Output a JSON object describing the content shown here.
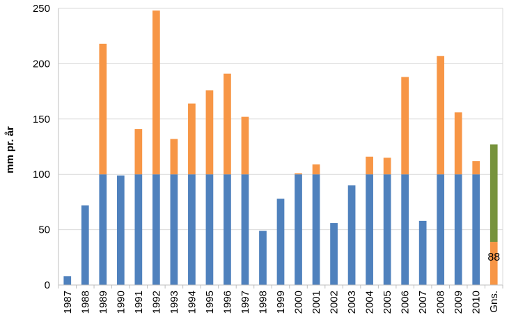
{
  "chart_data": {
    "type": "bar",
    "stacked": true,
    "title": "",
    "xlabel": "",
    "ylabel": "mm pr. år",
    "ylim": [
      0,
      250
    ],
    "yticks": [
      0,
      50,
      100,
      150,
      200,
      250
    ],
    "grid": true,
    "legend": "none",
    "categories": [
      "1987",
      "1988",
      "1989",
      "1990",
      "1991",
      "1992",
      "1993",
      "1994",
      "1995",
      "1996",
      "1997",
      "1998",
      "1999",
      "2000",
      "2001",
      "2002",
      "2003",
      "2004",
      "2005",
      "2006",
      "2007",
      "2008",
      "2009",
      "2010",
      "Gns."
    ],
    "series": [
      {
        "color": "#4f81bd",
        "values": [
          8,
          72,
          100,
          99,
          100,
          100,
          100,
          100,
          100,
          100,
          100,
          49,
          78,
          100,
          100,
          56,
          90,
          100,
          100,
          100,
          58,
          100,
          100,
          100,
          0
        ]
      },
      {
        "color": "#f79646",
        "values": [
          0,
          0,
          118,
          0,
          41,
          148,
          32,
          64,
          76,
          91,
          52,
          0,
          0,
          1,
          9,
          0,
          0,
          16,
          15,
          88,
          0,
          107,
          56,
          12,
          39
        ]
      },
      {
        "color": "#77933c",
        "values": [
          0,
          0,
          0,
          0,
          0,
          0,
          0,
          0,
          0,
          0,
          0,
          0,
          0,
          0,
          0,
          0,
          0,
          0,
          0,
          0,
          0,
          0,
          0,
          0,
          88
        ]
      }
    ],
    "data_labels": [
      {
        "category": "Gns.",
        "text": "88"
      }
    ]
  }
}
